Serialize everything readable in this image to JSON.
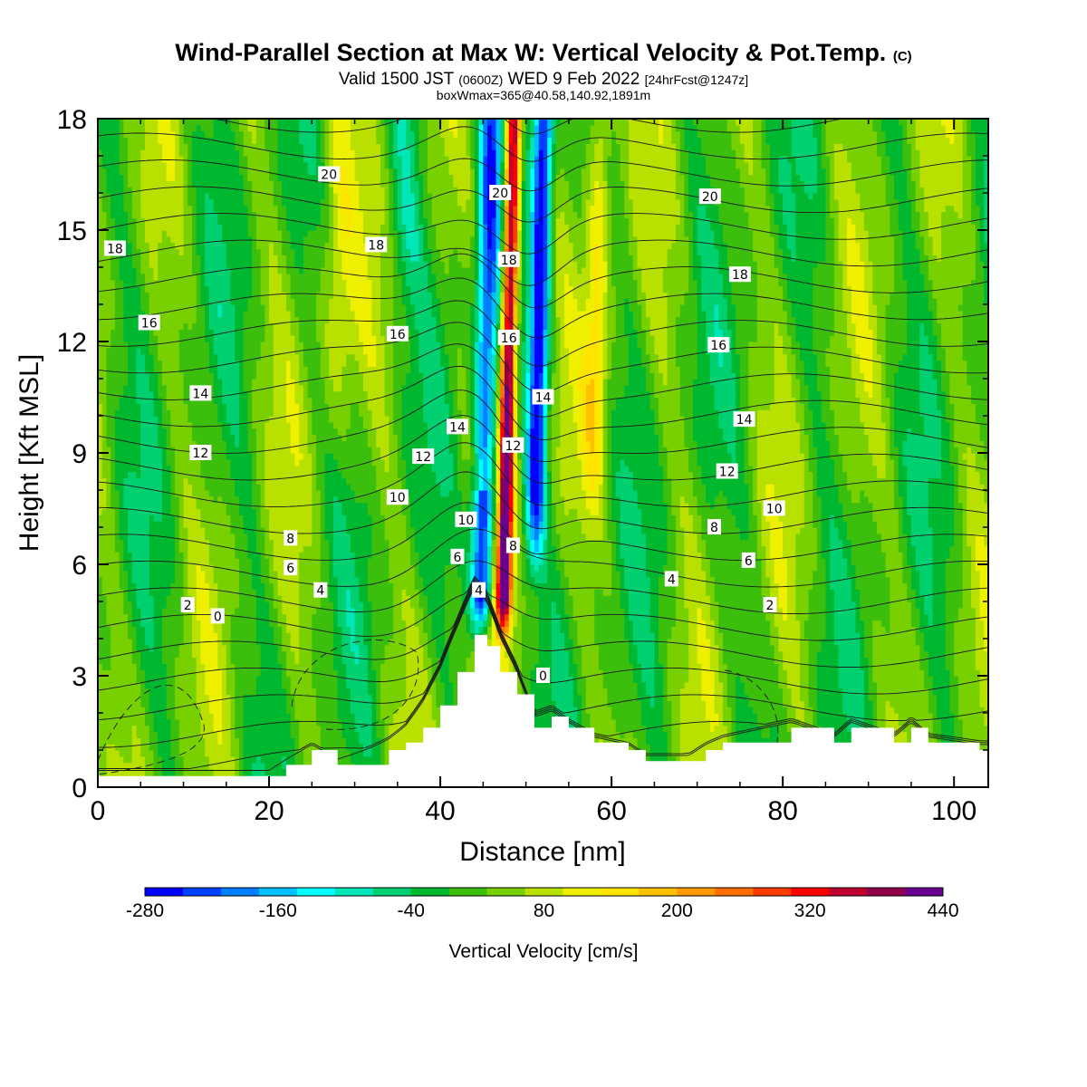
{
  "title": {
    "main": "Wind-Parallel Section at Max W: Vertical Velocity & Pot.Temp.",
    "copyright": "(C)",
    "valid_prefix": "Valid 1500 JST",
    "valid_utc": "(0600Z)",
    "valid_date": "WED 9 Feb 2022",
    "forecast": "[24hrFcst@1247z]",
    "boxinfo": "boxWmax=365@40.58,140.92,1891m"
  },
  "chart_data": {
    "type": "heatmap",
    "xlabel": "Distance [nm]",
    "ylabel": "Height [Kft MSL]",
    "xlim": [
      0,
      104
    ],
    "ylim": [
      0,
      18
    ],
    "x_ticks": [
      "0",
      "20",
      "40",
      "60",
      "80",
      "100"
    ],
    "y_ticks": [
      "0",
      "3",
      "6",
      "9",
      "12",
      "15",
      "18"
    ],
    "colorbar": {
      "title": "Vertical Velocity [cm/s]",
      "labels": [
        "-280",
        "-160",
        "-40",
        "80",
        "200",
        "320",
        "440"
      ],
      "levels": [
        -280,
        -160,
        -40,
        80,
        200,
        320,
        440
      ],
      "colors": [
        "#0000ff",
        "#0040ff",
        "#0080ff",
        "#00bfff",
        "#00ffff",
        "#00e6b8",
        "#00d070",
        "#00b830",
        "#3cbe0c",
        "#78d000",
        "#b8e000",
        "#eef000",
        "#ffe400",
        "#ffc000",
        "#ff9a00",
        "#ff6e00",
        "#ff3c00",
        "#ff0000",
        "#c00030",
        "#90004a",
        "#6a0090"
      ]
    },
    "terrain_kft": [
      {
        "x": 0,
        "h": 0.3
      },
      {
        "x": 20,
        "h": 0.3
      },
      {
        "x": 22,
        "h": 0.6
      },
      {
        "x": 25,
        "h": 1.0
      },
      {
        "x": 28,
        "h": 0.6
      },
      {
        "x": 34,
        "h": 1.0
      },
      {
        "x": 36,
        "h": 1.2
      },
      {
        "x": 38,
        "h": 1.6
      },
      {
        "x": 40,
        "h": 2.2
      },
      {
        "x": 42,
        "h": 3.1
      },
      {
        "x": 44,
        "h": 4.1
      },
      {
        "x": 45.5,
        "h": 3.8
      },
      {
        "x": 47,
        "h": 3.1
      },
      {
        "x": 49,
        "h": 2.5
      },
      {
        "x": 51,
        "h": 1.6
      },
      {
        "x": 53,
        "h": 1.9
      },
      {
        "x": 55,
        "h": 1.6
      },
      {
        "x": 58,
        "h": 1.2
      },
      {
        "x": 62,
        "h": 1.0
      },
      {
        "x": 64,
        "h": 0.7
      },
      {
        "x": 69,
        "h": 0.7
      },
      {
        "x": 71,
        "h": 1.0
      },
      {
        "x": 73,
        "h": 1.2
      },
      {
        "x": 81,
        "h": 1.6
      },
      {
        "x": 86,
        "h": 1.2
      },
      {
        "x": 88,
        "h": 1.6
      },
      {
        "x": 93,
        "h": 1.2
      },
      {
        "x": 95,
        "h": 1.6
      },
      {
        "x": 97,
        "h": 1.2
      },
      {
        "x": 103,
        "h": 1.0
      },
      {
        "x": 104,
        "h": 1.0
      }
    ],
    "theta_contours": {
      "levels": [
        0,
        2,
        4,
        6,
        8,
        10,
        12,
        14,
        16,
        18,
        20
      ],
      "contour_labels": [
        {
          "text": "20",
          "x": 27,
          "y": 16.5
        },
        {
          "text": "20",
          "x": 47,
          "y": 16.0
        },
        {
          "text": "20",
          "x": 71.5,
          "y": 15.9
        },
        {
          "text": "18",
          "x": 2,
          "y": 14.5
        },
        {
          "text": "18",
          "x": 32.5,
          "y": 14.6
        },
        {
          "text": "18",
          "x": 48,
          "y": 14.2
        },
        {
          "text": "18",
          "x": 75,
          "y": 13.8
        },
        {
          "text": "16",
          "x": 6,
          "y": 12.5
        },
        {
          "text": "16",
          "x": 35,
          "y": 12.2
        },
        {
          "text": "16",
          "x": 48,
          "y": 12.1
        },
        {
          "text": "16",
          "x": 72.5,
          "y": 11.9
        },
        {
          "text": "14",
          "x": 12,
          "y": 10.6
        },
        {
          "text": "14",
          "x": 52,
          "y": 10.5
        },
        {
          "text": "14",
          "x": 42,
          "y": 9.7
        },
        {
          "text": "14",
          "x": 75.5,
          "y": 9.9
        },
        {
          "text": "12",
          "x": 12,
          "y": 9.0
        },
        {
          "text": "12",
          "x": 38,
          "y": 8.9
        },
        {
          "text": "12",
          "x": 48.5,
          "y": 9.2
        },
        {
          "text": "12",
          "x": 73.5,
          "y": 8.5
        },
        {
          "text": "10",
          "x": 35,
          "y": 7.8
        },
        {
          "text": "10",
          "x": 43,
          "y": 7.2
        },
        {
          "text": "10",
          "x": 79,
          "y": 7.5
        },
        {
          "text": "8",
          "x": 22.5,
          "y": 6.7
        },
        {
          "text": "8",
          "x": 48.5,
          "y": 6.5
        },
        {
          "text": "8",
          "x": 72,
          "y": 7.0
        },
        {
          "text": "6",
          "x": 22.5,
          "y": 5.9
        },
        {
          "text": "6",
          "x": 42,
          "y": 6.2
        },
        {
          "text": "6",
          "x": 76,
          "y": 6.1
        },
        {
          "text": "4",
          "x": 26,
          "y": 5.3
        },
        {
          "text": "4",
          "x": 44.5,
          "y": 5.3
        },
        {
          "text": "4",
          "x": 67,
          "y": 5.6
        },
        {
          "text": "2",
          "x": 10.5,
          "y": 4.9
        },
        {
          "text": "2",
          "x": 78.5,
          "y": 4.9
        },
        {
          "text": "0",
          "x": 14,
          "y": 4.6
        },
        {
          "text": "0",
          "x": 52,
          "y": 3.0
        }
      ]
    },
    "max_updraft": {
      "value_cm_s": 365,
      "lat": 40.58,
      "lon": 140.92,
      "height_m": 1891
    }
  }
}
